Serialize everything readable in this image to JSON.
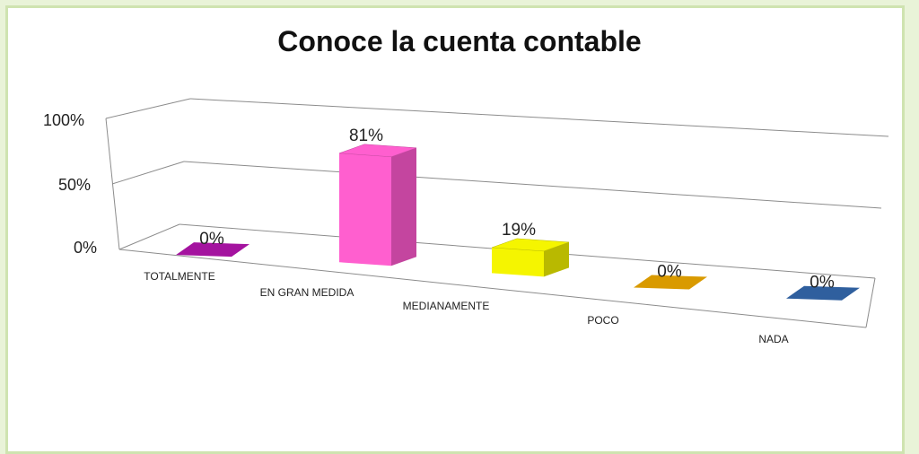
{
  "chart_data": {
    "type": "bar",
    "style": "3d",
    "title": "Conoce la cuenta contable",
    "categories": [
      "TOTALMENTE",
      "EN GRAN MEDIDA",
      "MEDIANAMENTE",
      "POCO",
      "NADA"
    ],
    "values": [
      0,
      81,
      19,
      0,
      0
    ],
    "value_labels": [
      "0%",
      "81%",
      "19%",
      "0%",
      "0%"
    ],
    "yticks": [
      "0%",
      "50%",
      "100%"
    ],
    "ylim": [
      0,
      100
    ],
    "grid": true,
    "legend": "none",
    "colors": [
      "#a4139f",
      "#ff5fcf",
      "#f5f500",
      "#d99a00",
      "#2f5f9e"
    ],
    "colors_side": [
      "#7a0a76",
      "#c4459f",
      "#b9b900",
      "#a87600",
      "#1f4475"
    ]
  }
}
